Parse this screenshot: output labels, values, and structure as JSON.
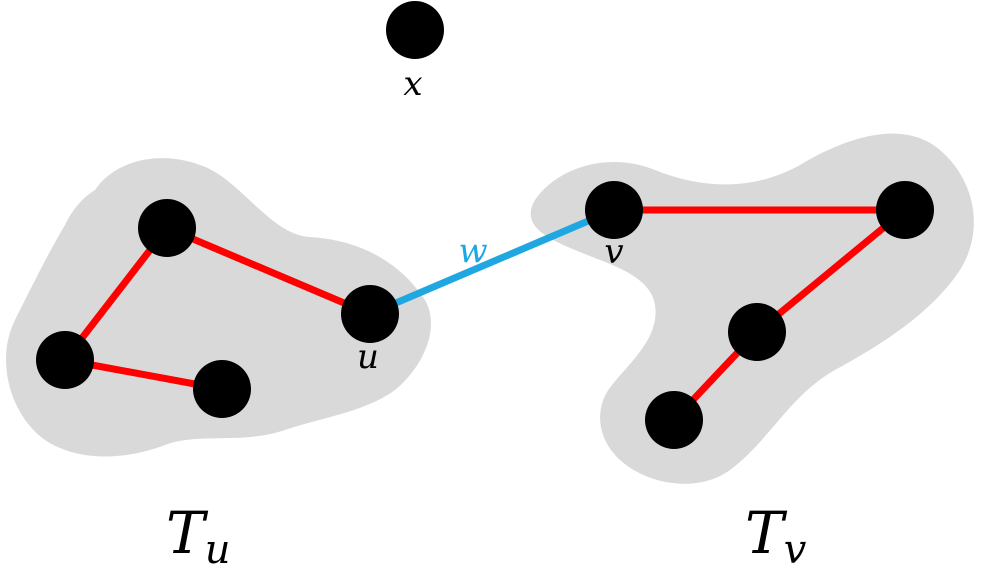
{
  "colors": {
    "region": "#d9d9d9",
    "tree_edge": "#ff0000",
    "connecting_edge": "#1ea7e1",
    "node": "#000000",
    "label": "#000000",
    "edge_label": "#1ea7e1"
  },
  "labels": {
    "x": "x",
    "u": "u",
    "v": "v",
    "w": "w",
    "tree_u_main": "T",
    "tree_u_sub": "u",
    "tree_v_main": "T",
    "tree_v_sub": "v"
  }
}
